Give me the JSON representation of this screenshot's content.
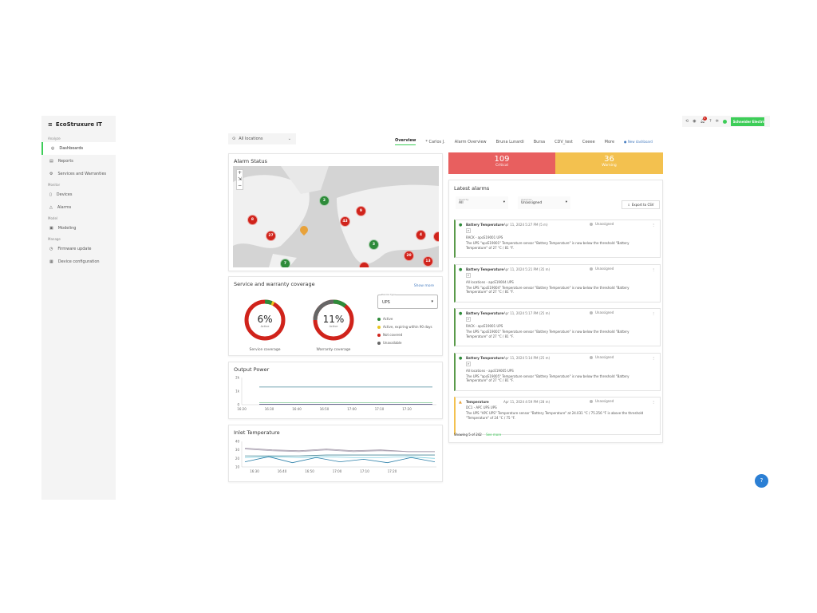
{
  "app": {
    "logo": "EcoStruxure IT",
    "brand": "Schneider Electric",
    "brand_color": "#3dcd58",
    "notification_count": "9"
  },
  "sidebar": {
    "sections": [
      {
        "label": "Analyze",
        "items": [
          {
            "label": "Dashboards",
            "icon": "eye-icon",
            "active": true
          },
          {
            "label": "Reports",
            "icon": "document-icon"
          },
          {
            "label": "Services and Warranties",
            "icon": "service-icon"
          }
        ]
      },
      {
        "label": "Monitor",
        "items": [
          {
            "label": "Devices",
            "icon": "device-icon"
          },
          {
            "label": "Alarms",
            "icon": "warning-icon"
          }
        ]
      },
      {
        "label": "Model",
        "items": [
          {
            "label": "Modeling",
            "icon": "model-icon"
          }
        ]
      },
      {
        "label": "Manage",
        "items": [
          {
            "label": "Firmware update",
            "icon": "clock-icon"
          },
          {
            "label": "Device configuration",
            "icon": "config-icon"
          }
        ]
      }
    ]
  },
  "location_select": {
    "value": "All locations"
  },
  "tabs": [
    "Overview",
    "* Carlos J.",
    "Alarm Overview",
    "Bruna Lunardi",
    "Bursa",
    "CDV_test",
    "Ceeee",
    "More"
  ],
  "new_dashboard": "New dashboard",
  "alarm_status": {
    "title": "Alarm Status",
    "markers": [
      {
        "count": "2",
        "status": "green"
      },
      {
        "count": "9",
        "status": "red"
      },
      {
        "count": "43",
        "status": "red"
      },
      {
        "count": "8",
        "status": "red"
      },
      {
        "count": "27",
        "status": "red"
      },
      {
        "count": "3",
        "status": "green"
      },
      {
        "count": "4",
        "status": "red"
      },
      {
        "count": "20",
        "status": "red"
      },
      {
        "count": "13",
        "status": "red"
      },
      {
        "count": "7",
        "status": "green"
      }
    ]
  },
  "summary": {
    "critical": {
      "count": "109",
      "label": "Critical",
      "color": "#e85f5f"
    },
    "warning": {
      "count": "36",
      "label": "Warning",
      "color": "#f3c14f"
    }
  },
  "coverage": {
    "title": "Service and warranty coverage",
    "show_more": "Show more",
    "device_type_label": "Device type",
    "device_type": "UPS",
    "service": {
      "percent": "6%",
      "sub": "Active",
      "label": "Service coverage",
      "active": 6,
      "expiring": 2,
      "unavailable": 0
    },
    "warranty": {
      "percent": "11%",
      "sub": "Active",
      "label": "Warranty coverage",
      "active": 11,
      "expiring": 0,
      "unavailable": 25
    },
    "legend": [
      {
        "label": "Active",
        "color": "#2e8b3a"
      },
      {
        "label": "Active, expiring within 90 days",
        "color": "#e8c51f"
      },
      {
        "label": "Not covered",
        "color": "#d0231b"
      },
      {
        "label": "Unavailable",
        "color": "#666666"
      }
    ]
  },
  "chart_data": [
    {
      "type": "line",
      "title": "Output Power",
      "yticks": [
        "2k",
        "1k",
        "0"
      ],
      "ylim": [
        0,
        2000
      ],
      "xticks": [
        "16:20",
        "16:30",
        "16:40",
        "16:50",
        "17:00",
        "17:10",
        "17:20"
      ],
      "series": [
        {
          "values": [
            1300,
            1300,
            1300,
            1300,
            1300,
            1300,
            1300
          ],
          "color": "#4a8a9a"
        },
        {
          "values": [
            150,
            150,
            150,
            150,
            150,
            150,
            150
          ],
          "color": "#8fcfa0"
        },
        {
          "values": [
            20,
            20,
            20,
            20,
            20,
            20,
            20
          ],
          "color": "#336"
        }
      ]
    },
    {
      "type": "line",
      "title": "Inlet Temperature",
      "yticks": [
        "40",
        "30",
        "20",
        "10"
      ],
      "ylim": [
        10,
        40
      ],
      "xticks": [
        "16:30",
        "16:40",
        "16:50",
        "17:00",
        "17:10",
        "17:20"
      ],
      "series": [
        {
          "values": [
            32,
            30,
            29,
            31,
            29,
            30,
            28,
            28
          ],
          "color": "#9a8fa0"
        },
        {
          "values": [
            31,
            29,
            28,
            30,
            28,
            29,
            28,
            28
          ],
          "color": "#b0a8b8"
        },
        {
          "values": [
            23,
            23,
            23,
            24,
            24,
            24,
            24,
            24
          ],
          "color": "#4a8a9a"
        },
        {
          "values": [
            21,
            22,
            21,
            22,
            21,
            21,
            22,
            20
          ],
          "color": "#7fd0e0"
        },
        {
          "values": [
            16,
            22,
            15,
            21,
            16,
            19,
            15,
            21,
            16
          ],
          "color": "#2b7fa8"
        }
      ]
    }
  ],
  "alarms": {
    "title": "Latest alarms",
    "severity_label": "Severity",
    "severity": "All",
    "assignee_label": "Assignee",
    "assignee": "Unassigned",
    "export": "Export to CSV",
    "items": [
      {
        "name": "Battery Temperature",
        "time": "Apr 11, 2024 5:27 PM (5 m)",
        "status": "Unassigned",
        "location": "RACK - apcE19001 UPS",
        "desc": "The UPS \"apcE19001\" Temperature sensor \"Battery Temperature\" is now below the threshold \"Battery Temperature\" of 27 °C / 81 °F.",
        "level": "ok"
      },
      {
        "name": "Battery Temperature",
        "time": "Apr 11, 2024 5:21 PM (35 m)",
        "status": "Unassigned",
        "location": "All locations - apcE19004 UPS",
        "desc": "The UPS \"apcE19004\" Temperature sensor \"Battery Temperature\" is now below the threshold \"Battery Temperature\" of 27 °C / 81 °F.",
        "level": "ok"
      },
      {
        "name": "Battery Temperature",
        "time": "Apr 11, 2024 5:17 PM (25 m)",
        "status": "Unassigned",
        "location": "RACK - apcE19001 UPS",
        "desc": "The UPS \"apcE19001\" Temperature sensor \"Battery Temperature\" is now below the threshold \"Battery Temperature\" of 27 °C / 81 °F.",
        "level": "ok"
      },
      {
        "name": "Battery Temperature",
        "time": "Apr 11, 2024 5:14 PM (25 m)",
        "status": "Unassigned",
        "location": "All locations - apcE19005 UPS",
        "desc": "The UPS \"apcE19005\" Temperature sensor \"Battery Temperature\" is now below the threshold \"Battery Temperature\" of 27 °C / 81 °F.",
        "level": "ok"
      },
      {
        "name": "Temperature",
        "time": "Apr 11, 2024 4:59 PM (28 m)",
        "status": "Unassigned",
        "location": "DC1 - APC UPS UPS",
        "desc": "The UPS \"APC UPS\" Temperature sensor \"Battery Temperature\" at 24.031 °C / 75.256 °F is above the threshold \"Temperature\" of 24 °C / 75 °F.",
        "level": "warn"
      }
    ],
    "showing": "Showing 5 of 242",
    "see_more": "See more"
  }
}
